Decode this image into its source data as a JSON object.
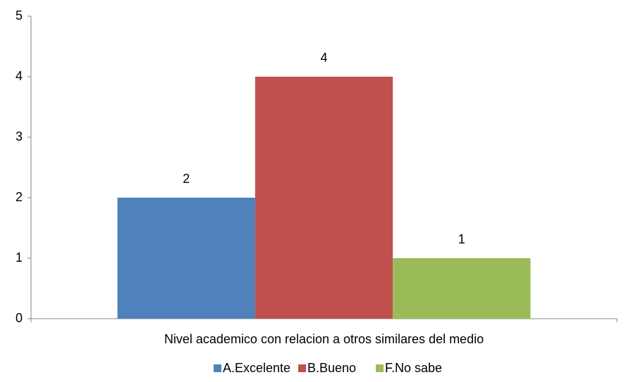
{
  "chart_data": {
    "type": "bar",
    "categories": [
      "Nivel academico con relacion a otros similares del medio"
    ],
    "series": [
      {
        "name": "A.Excelente",
        "color": "#4f81bd",
        "values": [
          2
        ]
      },
      {
        "name": "B.Bueno",
        "color": "#c0504d",
        "values": [
          4
        ]
      },
      {
        "name": "F.No sabe",
        "color": "#9bbb59",
        "values": [
          1
        ]
      }
    ],
    "ylim": [
      0,
      5
    ],
    "yticks": [
      0,
      1,
      2,
      3,
      4,
      5
    ],
    "grid": false,
    "legend": "bottom"
  }
}
